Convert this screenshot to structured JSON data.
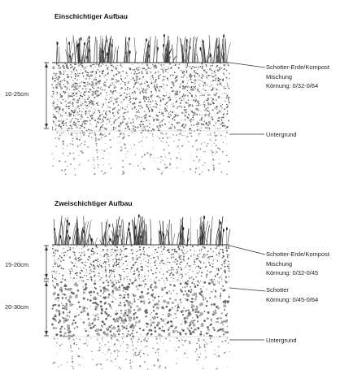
{
  "top": {
    "title": "Einschichtiger Aufbau",
    "dimension": "10-25cm",
    "layer_label_lines": [
      "Schotter-Erde/Kompost",
      "Mischung",
      "Körnung: 0/32-0/64"
    ],
    "base_label": "Untergrund"
  },
  "bottom": {
    "title": "Zweischichtiger Aufbau",
    "dimension_upper": "15-20cm",
    "dimension_lower": "20-30cm",
    "upper_label_lines": [
      "Schotter-Erde/Kompost",
      "Mischung",
      "Körnung: 0/32-0/45"
    ],
    "lower_label_lines": [
      "Schotter",
      "Körnung: 0/45-0/64"
    ],
    "base_label": "Untergrund"
  }
}
